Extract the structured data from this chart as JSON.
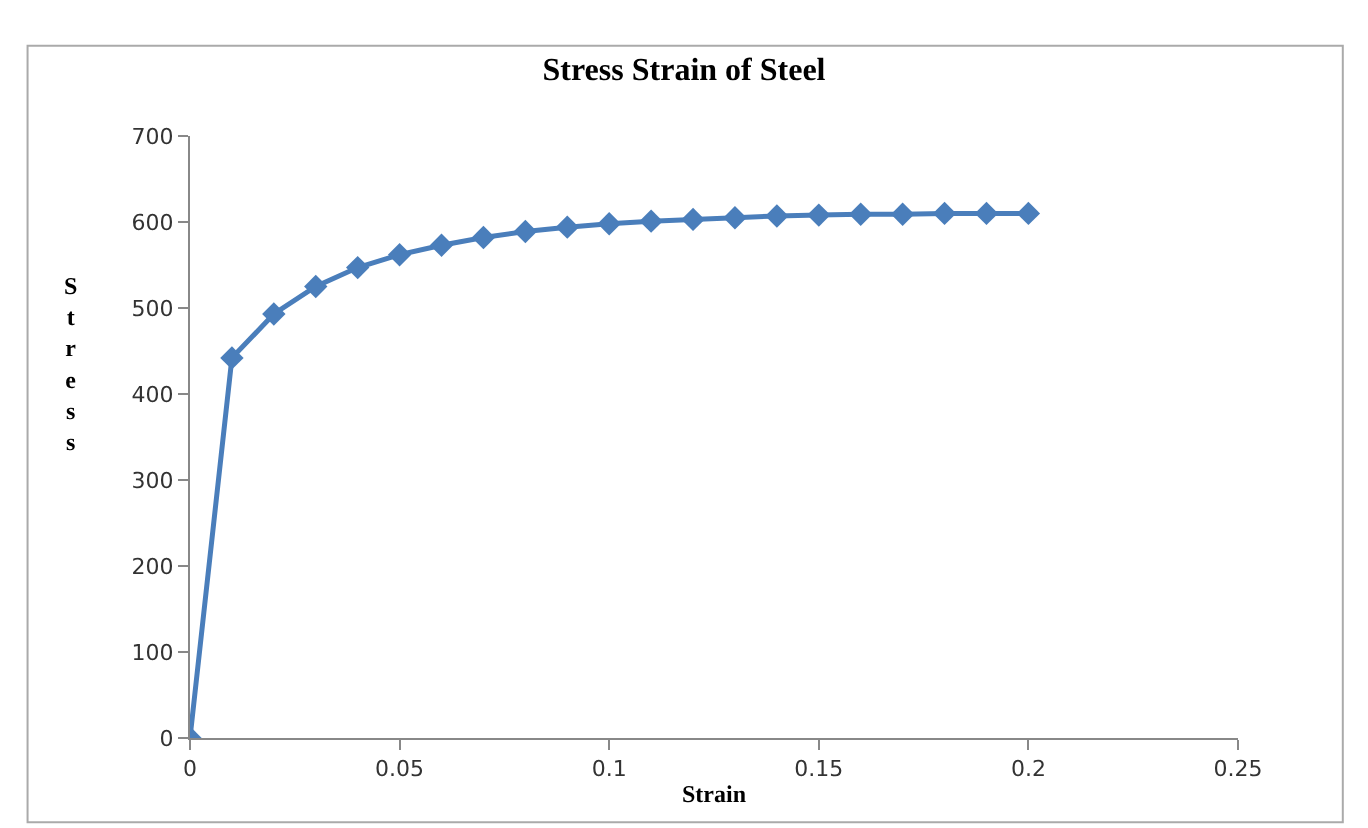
{
  "chart_data": {
    "type": "line",
    "title": "Stress Strain of Steel",
    "xlabel": "Strain",
    "ylabel": "Stress",
    "x": [
      0,
      0.01,
      0.02,
      0.03,
      0.04,
      0.05,
      0.06,
      0.07,
      0.08,
      0.09,
      0.1,
      0.11,
      0.12,
      0.13,
      0.14,
      0.15,
      0.16,
      0.17,
      0.18,
      0.19,
      0.2
    ],
    "series": [
      {
        "color": "#4a7ebb",
        "values": [
          0,
          442,
          493,
          525,
          547,
          562,
          573,
          582,
          589,
          594,
          598,
          601,
          603,
          605,
          607,
          608,
          609,
          609,
          610,
          610,
          610
        ]
      }
    ],
    "xlim": [
      0,
      0.25
    ],
    "xticks": [
      0,
      0.05,
      0.1,
      0.15,
      0.2,
      0.25
    ],
    "ylim": [
      0,
      700
    ],
    "yticks": [
      0,
      100,
      200,
      300,
      400,
      500,
      600,
      700
    ],
    "grid": false,
    "marker": "diamond",
    "line_style": "solid"
  }
}
